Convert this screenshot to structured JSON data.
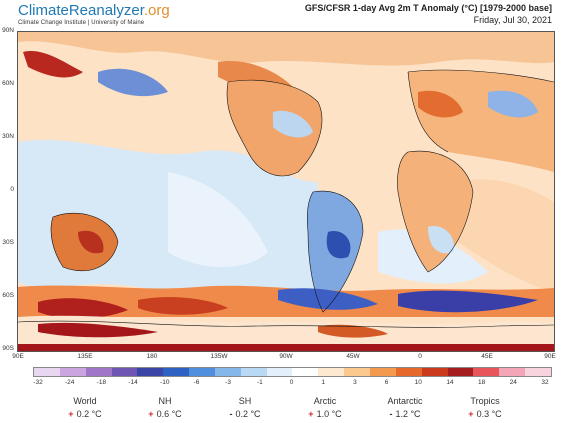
{
  "brand": {
    "name_part1": "ClimateReanalyzer",
    "name_part2": ".org",
    "subtitle": "Climate Change Institute | University of Maine"
  },
  "title": {
    "main": "GFS/CFSR 1-day Avg 2m T Anomaly (°C) [1979-2000 base]",
    "date": "Friday, Jul 30, 2021"
  },
  "map": {
    "y_labels": [
      "90N",
      "60N",
      "30N",
      "0",
      "30S",
      "60S",
      "90S"
    ],
    "x_labels": [
      "90E",
      "135E",
      "180",
      "135W",
      "90W",
      "45W",
      "0",
      "45E",
      "90E"
    ]
  },
  "colorbar": {
    "labels": [
      "-32",
      "-24",
      "-18",
      "-14",
      "-10",
      "-6",
      "-3",
      "-1",
      "0",
      "1",
      "3",
      "6",
      "10",
      "14",
      "18",
      "24",
      "32"
    ],
    "colors": [
      "#e9d6f0",
      "#c9a6df",
      "#9f77c9",
      "#6e57b4",
      "#3a45a8",
      "#2d62c4",
      "#4f8fdd",
      "#86b7ea",
      "#b9d8f4",
      "#e3effa",
      "#ffffff",
      "#fde8d0",
      "#fbc98e",
      "#f39a4e",
      "#e4692a",
      "#cc3a1e",
      "#a51d1d",
      "#e8555a",
      "#f4a6b8",
      "#f7d4de"
    ]
  },
  "stats": [
    {
      "name": "World",
      "sign": "+",
      "value": "0.2 °C"
    },
    {
      "name": "NH",
      "sign": "+",
      "value": "0.6 °C"
    },
    {
      "name": "SH",
      "sign": "-",
      "value": "0.2 °C"
    },
    {
      "name": "Arctic",
      "sign": "+",
      "value": "1.0 °C"
    },
    {
      "name": "Antarctic",
      "sign": "-",
      "value": "1.2 °C"
    },
    {
      "name": "Tropics",
      "sign": "+",
      "value": "0.3 °C"
    }
  ]
}
